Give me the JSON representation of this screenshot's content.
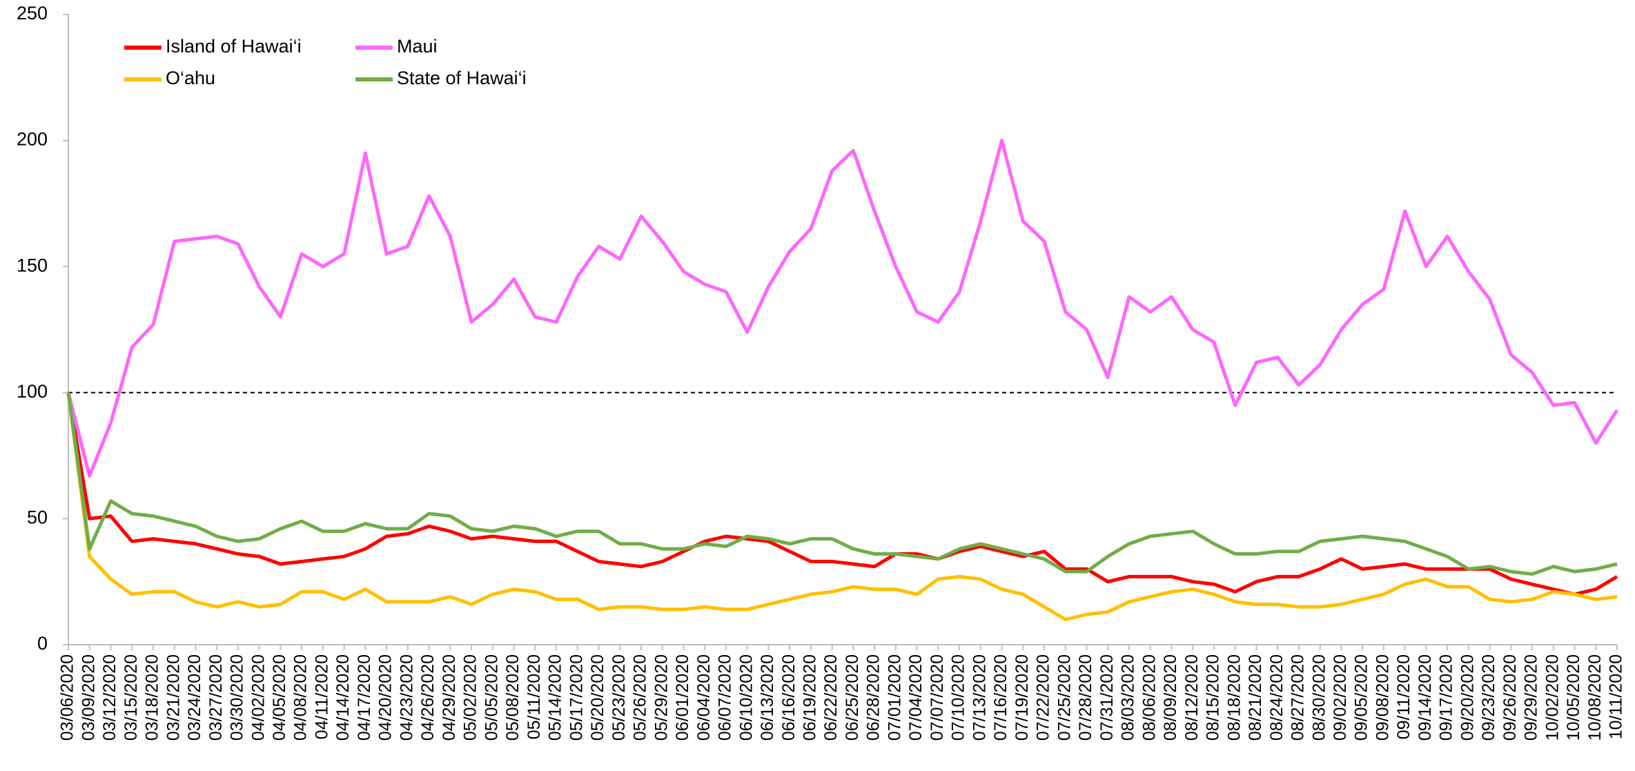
{
  "chart_data": {
    "type": "line",
    "categories": [
      "03/06/2020",
      "03/09/2020",
      "03/12/2020",
      "03/15/2020",
      "03/18/2020",
      "03/21/2020",
      "03/24/2020",
      "03/27/2020",
      "03/30/2020",
      "04/02/2020",
      "04/05/2020",
      "04/08/2020",
      "04/11/2020",
      "04/14/2020",
      "04/17/2020",
      "04/20/2020",
      "04/23/2020",
      "04/26/2020",
      "04/29/2020",
      "05/02/2020",
      "05/05/2020",
      "05/08/2020",
      "05/11/2020",
      "05/14/2020",
      "05/17/2020",
      "05/20/2020",
      "05/23/2020",
      "05/26/2020",
      "05/29/2020",
      "06/01/2020",
      "06/04/2020",
      "06/07/2020",
      "06/10/2020",
      "06/13/2020",
      "06/16/2020",
      "06/19/2020",
      "06/22/2020",
      "06/25/2020",
      "06/28/2020",
      "07/01/2020",
      "07/04/2020",
      "07/07/2020",
      "07/10/2020",
      "07/13/2020",
      "07/16/2020",
      "07/19/2020",
      "07/22/2020",
      "07/25/2020",
      "07/28/2020",
      "07/31/2020",
      "08/03/2020",
      "08/06/2020",
      "08/09/2020",
      "08/12/2020",
      "08/15/2020",
      "08/18/2020",
      "08/21/2020",
      "08/24/2020",
      "08/27/2020",
      "08/30/2020",
      "09/02/2020",
      "09/05/2020",
      "09/08/2020",
      "09/11/2020",
      "09/14/2020",
      "09/17/2020",
      "09/20/2020",
      "09/23/2020",
      "09/26/2020",
      "09/29/2020",
      "10/02/2020",
      "10/05/2020",
      "10/08/2020",
      "10/11/2020"
    ],
    "series": [
      {
        "name": "Island of Hawai‘i",
        "color": "#ff0000",
        "values": [
          100,
          50,
          51,
          41,
          42,
          41,
          40,
          38,
          36,
          35,
          32,
          33,
          34,
          35,
          38,
          43,
          44,
          47,
          45,
          42,
          43,
          42,
          41,
          41,
          37,
          33,
          32,
          31,
          33,
          37,
          41,
          43,
          42,
          41,
          37,
          33,
          33,
          32,
          31,
          36,
          36,
          34,
          37,
          39,
          37,
          35,
          37,
          30,
          30,
          25,
          27,
          27,
          27,
          25,
          24,
          21,
          25,
          27,
          27,
          30,
          34,
          30,
          31,
          32,
          30,
          30,
          30,
          30,
          26,
          24,
          22,
          20,
          22,
          27
        ]
      },
      {
        "name": "Maui",
        "color": "#ff66ff",
        "values": [
          100,
          67,
          88,
          118,
          127,
          160,
          161,
          162,
          159,
          142,
          130,
          155,
          150,
          155,
          195,
          155,
          158,
          178,
          162,
          128,
          135,
          145,
          130,
          128,
          146,
          158,
          153,
          170,
          160,
          148,
          143,
          140,
          124,
          142,
          156,
          165,
          188,
          196,
          172,
          150,
          132,
          128,
          140,
          168,
          200,
          168,
          160,
          132,
          125,
          106,
          138,
          132,
          138,
          125,
          120,
          95,
          112,
          114,
          103,
          111,
          125,
          135,
          141,
          172,
          150,
          162,
          148,
          137,
          115,
          108,
          95,
          96,
          80,
          93
        ]
      },
      {
        "name": "O‘ahu",
        "color": "#ffc000",
        "values": [
          100,
          35,
          26,
          20,
          21,
          21,
          17,
          15,
          17,
          15,
          16,
          21,
          21,
          18,
          22,
          17,
          17,
          17,
          19,
          16,
          20,
          22,
          21,
          18,
          18,
          14,
          15,
          15,
          14,
          14,
          15,
          14,
          14,
          16,
          18,
          20,
          21,
          23,
          22,
          22,
          20,
          26,
          27,
          26,
          22,
          20,
          15,
          10,
          12,
          13,
          17,
          19,
          21,
          22,
          20,
          17,
          16,
          16,
          15,
          15,
          16,
          18,
          20,
          24,
          26,
          23,
          23,
          18,
          17,
          18,
          21,
          20,
          18,
          19
        ]
      },
      {
        "name": "State of Hawai‘i",
        "color": "#70ad47",
        "values": [
          100,
          38,
          57,
          52,
          51,
          49,
          47,
          43,
          41,
          42,
          46,
          49,
          45,
          45,
          48,
          46,
          46,
          52,
          51,
          46,
          45,
          47,
          46,
          43,
          45,
          45,
          40,
          40,
          38,
          38,
          40,
          39,
          43,
          42,
          40,
          42,
          42,
          38,
          36,
          36,
          35,
          34,
          38,
          40,
          38,
          36,
          34,
          29,
          29,
          35,
          40,
          43,
          44,
          45,
          40,
          36,
          36,
          37,
          37,
          41,
          42,
          43,
          42,
          41,
          38,
          35,
          30,
          31,
          29,
          28,
          31,
          29,
          30,
          32
        ]
      }
    ],
    "ylim": [
      0,
      250
    ],
    "yticks": [
      0,
      50,
      100,
      150,
      200,
      250
    ],
    "reference_line": 100,
    "grid": false
  }
}
